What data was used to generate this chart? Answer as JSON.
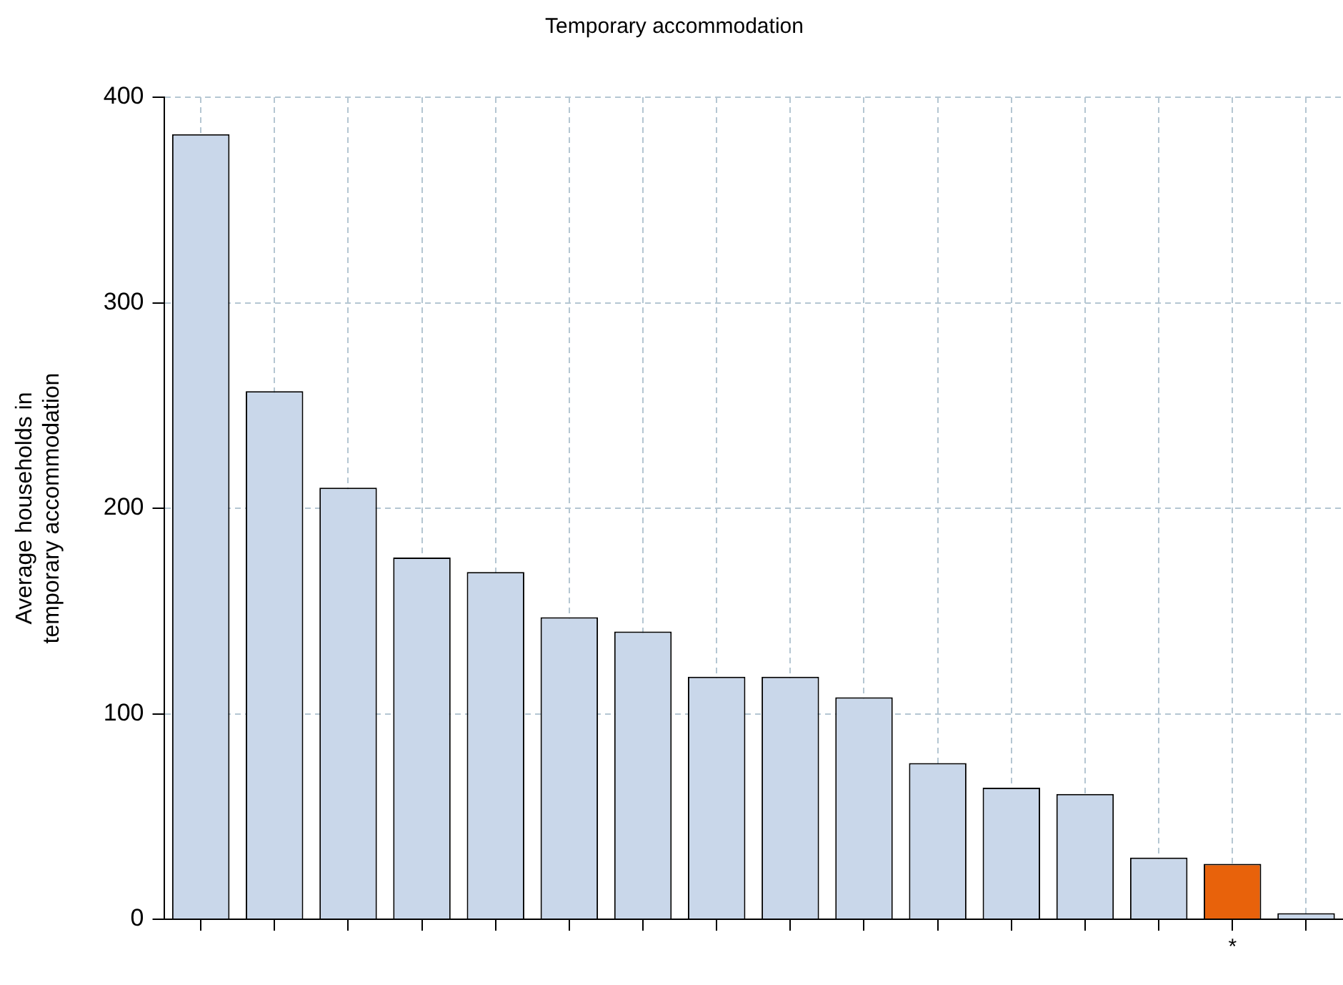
{
  "chart_data": {
    "type": "bar",
    "title": "Temporary accommodation",
    "ylabel": "Average households in temporary accommodation",
    "categories": [
      null,
      null,
      null,
      null,
      null,
      null,
      null,
      null,
      null,
      null,
      null,
      null,
      null,
      null,
      "*",
      null
    ],
    "values": [
      382,
      257,
      210,
      176,
      169,
      147,
      140,
      118,
      118,
      108,
      76,
      64,
      61,
      30,
      27,
      3
    ],
    "colors": [
      "#c9d7ea",
      "#c9d7ea",
      "#c9d7ea",
      "#c9d7ea",
      "#c9d7ea",
      "#c9d7ea",
      "#c9d7ea",
      "#c9d7ea",
      "#c9d7ea",
      "#c9d7ea",
      "#c9d7ea",
      "#c9d7ea",
      "#c9d7ea",
      "#c9d7ea",
      "#e8620b",
      "#c9d7ea"
    ],
    "ylim": [
      0,
      400
    ],
    "yticks": [
      0,
      100,
      200,
      300,
      400
    ],
    "grid": true
  }
}
